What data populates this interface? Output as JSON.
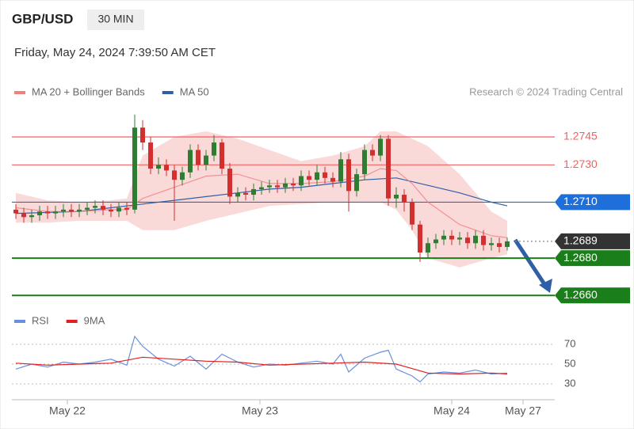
{
  "header": {
    "symbol": "GBP/USD",
    "interval": "30 MIN",
    "datetime": "Friday, May 24, 2024 7:39:50 AM CET",
    "credit": "Research © 2024 Trading Central"
  },
  "chart_data": [
    {
      "type": "candlestick",
      "xlim": [
        -0.5,
        68
      ],
      "ylim": [
        1.2655,
        1.2759
      ],
      "up_color": "#2e7d32",
      "down_color": "#d32f2f",
      "open": [
        1.2706,
        1.2704,
        1.2702,
        1.2703,
        1.2705,
        1.2704,
        1.2705,
        1.2706,
        1.2705,
        1.2706,
        1.2707,
        1.2708,
        1.2706,
        1.2705,
        1.2707,
        1.2706,
        1.275,
        1.2742,
        1.2728,
        1.273,
        1.2727,
        1.2722,
        1.2726,
        1.2738,
        1.273,
        1.2735,
        1.2742,
        1.2728,
        1.2713,
        1.2715,
        1.2714,
        1.2717,
        1.2718,
        1.2719,
        1.2718,
        1.272,
        1.2719,
        1.2724,
        1.2722,
        1.2726,
        1.2723,
        1.2721,
        1.2733,
        1.2716,
        1.2725,
        1.2738,
        1.2735,
        1.2744,
        1.2712,
        1.2714,
        1.271,
        1.2698,
        1.2683,
        1.2688,
        1.269,
        1.2692,
        1.269,
        1.2691,
        1.2688,
        1.2692,
        1.2687,
        1.2688,
        1.2686
      ],
      "high": [
        1.2709,
        1.2707,
        1.2706,
        1.2708,
        1.2708,
        1.2708,
        1.2709,
        1.2709,
        1.2709,
        1.271,
        1.2711,
        1.2711,
        1.2709,
        1.271,
        1.271,
        1.2757,
        1.2754,
        1.2745,
        1.2734,
        1.2733,
        1.273,
        1.2729,
        1.2741,
        1.2741,
        1.2738,
        1.2746,
        1.2744,
        1.2731,
        1.2718,
        1.2718,
        1.272,
        1.2721,
        1.2722,
        1.2722,
        1.2723,
        1.2723,
        1.2727,
        1.2727,
        1.273,
        1.2729,
        1.2726,
        1.2737,
        1.2736,
        1.2728,
        1.2741,
        1.2741,
        1.2746,
        1.2746,
        1.2718,
        1.2717,
        1.2712,
        1.27,
        1.2691,
        1.2693,
        1.2695,
        1.2695,
        1.2694,
        1.2694,
        1.2695,
        1.2695,
        1.2691,
        1.2691,
        1.2691
      ],
      "low": [
        1.2701,
        1.2699,
        1.2699,
        1.27,
        1.2701,
        1.2701,
        1.2702,
        1.2702,
        1.2702,
        1.2703,
        1.2704,
        1.2703,
        1.2702,
        1.2702,
        1.2703,
        1.2704,
        1.2738,
        1.2725,
        1.2725,
        1.2724,
        1.27,
        1.2719,
        1.2723,
        1.2727,
        1.2727,
        1.2732,
        1.2725,
        1.2709,
        1.271,
        1.2711,
        1.2711,
        1.2714,
        1.2715,
        1.2715,
        1.2715,
        1.2716,
        1.2716,
        1.2719,
        1.2719,
        1.272,
        1.2718,
        1.2718,
        1.2705,
        1.2713,
        1.2722,
        1.2732,
        1.2732,
        1.2708,
        1.2707,
        1.2705,
        1.2695,
        1.2678,
        1.268,
        1.2685,
        1.2687,
        1.2687,
        1.2687,
        1.2685,
        1.2685,
        1.2684,
        1.2684,
        1.2683,
        1.2684
      ],
      "close": [
        1.2704,
        1.2702,
        1.2703,
        1.2705,
        1.2704,
        1.2705,
        1.2706,
        1.2705,
        1.2706,
        1.2707,
        1.2708,
        1.2706,
        1.2705,
        1.2707,
        1.2706,
        1.275,
        1.2742,
        1.2728,
        1.273,
        1.2727,
        1.2722,
        1.2726,
        1.2738,
        1.273,
        1.2735,
        1.2742,
        1.2728,
        1.2713,
        1.2715,
        1.2714,
        1.2717,
        1.2718,
        1.2719,
        1.2718,
        1.272,
        1.2719,
        1.2724,
        1.2722,
        1.2726,
        1.2723,
        1.2721,
        1.2733,
        1.2716,
        1.2725,
        1.2738,
        1.2735,
        1.2744,
        1.2712,
        1.2714,
        1.271,
        1.2698,
        1.2683,
        1.2688,
        1.269,
        1.2692,
        1.269,
        1.2691,
        1.2688,
        1.2692,
        1.2687,
        1.2688,
        1.2686,
        1.2689
      ],
      "series": [
        {
          "name": "MA 20 + Bollinger Bands",
          "color": "#f08080",
          "x": [
            0,
            4,
            8,
            12,
            14,
            16,
            20,
            24,
            28,
            32,
            36,
            40,
            44,
            46,
            48,
            50,
            52,
            56,
            60,
            62
          ],
          "values": [
            1.2707,
            1.2705,
            1.2705,
            1.2706,
            1.2706,
            1.2712,
            1.2718,
            1.2724,
            1.2725,
            1.272,
            1.272,
            1.2721,
            1.2724,
            1.2728,
            1.2727,
            1.272,
            1.271,
            1.2698,
            1.2692,
            1.2691
          ],
          "upper": [
            1.2715,
            1.2711,
            1.271,
            1.2711,
            1.2712,
            1.2735,
            1.2745,
            1.2748,
            1.2744,
            1.2738,
            1.2732,
            1.2735,
            1.274,
            1.2748,
            1.2748,
            1.2744,
            1.274,
            1.2725,
            1.2705,
            1.27
          ],
          "lower": [
            1.2699,
            1.2699,
            1.27,
            1.27,
            1.27,
            1.2695,
            1.2695,
            1.27,
            1.2704,
            1.2708,
            1.2709,
            1.271,
            1.271,
            1.271,
            1.2706,
            1.2695,
            1.268,
            1.2675,
            1.268,
            1.2682
          ]
        },
        {
          "name": "MA 50",
          "color": "#2f5fa8",
          "x": [
            0,
            8,
            16,
            20,
            24,
            28,
            32,
            36,
            40,
            44,
            48,
            52,
            56,
            60,
            62
          ],
          "values": [
            1.2704,
            1.2705,
            1.2709,
            1.2711,
            1.2713,
            1.2715,
            1.2717,
            1.2718,
            1.272,
            1.2722,
            1.2723,
            1.2719,
            1.2715,
            1.271,
            1.2708
          ]
        }
      ],
      "levels": [
        {
          "value": 1.2745,
          "color": "#f06060",
          "line": "solid",
          "boxed": false
        },
        {
          "value": 1.273,
          "label": "1.2730",
          "color": "#f06060",
          "line": "solid",
          "boxed": false
        },
        {
          "value": 1.271,
          "label": "1.2710",
          "color": "#1e6fd9",
          "line": "solid",
          "boxed": true
        },
        {
          "value": 1.2689,
          "color": "#333333",
          "line": "dotted",
          "boxed": true
        },
        {
          "value": 1.268,
          "label": "1.2680",
          "color": "#1a7f1a",
          "line": "solid",
          "boxed": true
        },
        {
          "value": 1.266,
          "label": "1.2660",
          "color": "#1a7f1a",
          "line": "solid",
          "boxed": true
        }
      ]
    },
    {
      "type": "line",
      "xlim": [
        -0.5,
        68
      ],
      "ylim": [
        18,
        82
      ],
      "yticks": [
        30,
        50,
        70
      ],
      "xticks": [
        {
          "value": 6.5,
          "label": "May 22"
        },
        {
          "value": 30.8,
          "label": "May 23"
        },
        {
          "value": 55,
          "label": "May 24"
        },
        {
          "value": 64,
          "label": "May 27"
        }
      ],
      "series": [
        {
          "name": "RSI",
          "color": "#6a8fe0",
          "x": [
            0,
            2,
            4,
            6,
            8,
            10,
            12,
            14,
            15,
            16,
            18,
            20,
            22,
            24,
            26,
            28,
            30,
            32,
            34,
            36,
            38,
            40,
            41,
            42,
            44,
            46,
            47,
            48,
            50,
            51,
            52,
            54,
            56,
            58,
            60,
            62
          ],
          "values": [
            45,
            50,
            47,
            52,
            50,
            52,
            55,
            49,
            78,
            68,
            55,
            48,
            58,
            45,
            60,
            52,
            47,
            50,
            49,
            51,
            53,
            50,
            60,
            42,
            56,
            62,
            64,
            45,
            38,
            32,
            40,
            42,
            41,
            44,
            40,
            41
          ]
        },
        {
          "name": "9MA",
          "color": "#e02020",
          "x": [
            0,
            4,
            8,
            12,
            16,
            20,
            24,
            28,
            32,
            36,
            40,
            44,
            48,
            52,
            56,
            60,
            62
          ],
          "values": [
            51,
            49,
            50,
            51,
            57,
            55,
            53,
            52,
            49,
            50,
            51,
            52,
            50,
            41,
            40,
            41,
            40
          ]
        }
      ]
    }
  ]
}
